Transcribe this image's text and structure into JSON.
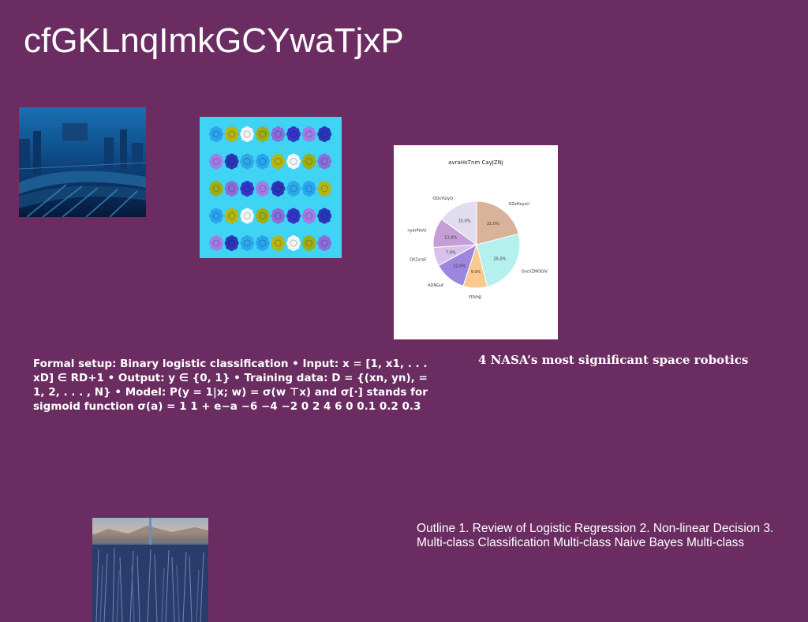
{
  "slide": {
    "title": "cfGKLnqImkGCYwaTjxP",
    "caption": "4 NASA’s most significant space robotics",
    "body": "Formal setup: Binary logistic classification • Input: x = [1, x1, . . . xD] ∈ RD+1 • Output: y ∈ {0, 1} • Training data: D = {(xn, yn), = 1, 2, . . . , N} • Model: P(y = 1|x; w) = σ(w ⊤x) and σ[·] stands for sigmoid function σ(a) = 1 1 + e−a −6 −4 −2 0 2 4 6 0 0.1 0.2 0.3",
    "outline": "Outline 1. Review of Logistic Regression 2. Non-linear Decision 3. Multi-class Classification Multi-class Naive Bayes Multi-class"
  },
  "chart_data": {
    "type": "pie",
    "title": "avraHsTnm CayJZNj",
    "slices": [
      {
        "label": "OZaHoysU",
        "value": 21.0,
        "color": "#d9b29a"
      },
      {
        "label": "OxchZMOGIV",
        "value": 25.0,
        "color": "#b3f0ee"
      },
      {
        "label": "YDVhJJ",
        "value": 9.0,
        "color": "#fac98f"
      },
      {
        "label": "ADNGuf",
        "value": 12.0,
        "color": "#9b86e0"
      },
      {
        "label": "OXZxraF",
        "value": 7.0,
        "color": "#d8c2eb"
      },
      {
        "label": "nyerPeVU",
        "value": 11.0,
        "color": "#c59ed6"
      },
      {
        "label": "ODsYGlyQ",
        "value": 15.0,
        "color": "#e1ddef"
      }
    ]
  }
}
